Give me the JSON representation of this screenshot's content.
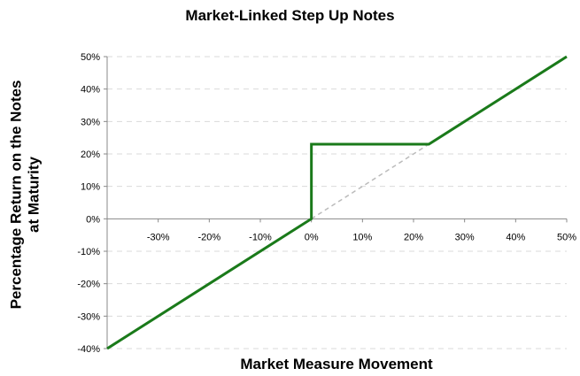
{
  "chart_data": {
    "type": "line",
    "title": "Market-Linked Step Up Notes",
    "xlabel": "Market Measure Movement",
    "ylabel": "Percentage Return on the Notes\nat Maturity",
    "xlim": [
      -40,
      50
    ],
    "ylim": [
      -40,
      50
    ],
    "x_ticks": [
      -30,
      -20,
      -10,
      0,
      10,
      20,
      30,
      40,
      50
    ],
    "x_tick_labels": [
      "-30%",
      "-20%",
      "-10%",
      "0%",
      "10%",
      "20%",
      "30%",
      "40%",
      "50%"
    ],
    "y_ticks": [
      50,
      40,
      30,
      20,
      10,
      0,
      -10,
      -20,
      -30,
      -40
    ],
    "y_tick_labels": [
      "50%",
      "40%",
      "30%",
      "20%",
      "10%",
      "0%",
      "-10%",
      "-20%",
      "-30%",
      "-40%"
    ],
    "grid": true,
    "series": [
      {
        "color": "#1a7a1a",
        "style": "solid",
        "x": [
          -40,
          0,
          0,
          23,
          50
        ],
        "y": [
          -40,
          0,
          23,
          23,
          50
        ]
      },
      {
        "color": "#bbbbbb",
        "style": "dashed",
        "x": [
          0,
          23
        ],
        "y": [
          0,
          23
        ]
      }
    ]
  }
}
